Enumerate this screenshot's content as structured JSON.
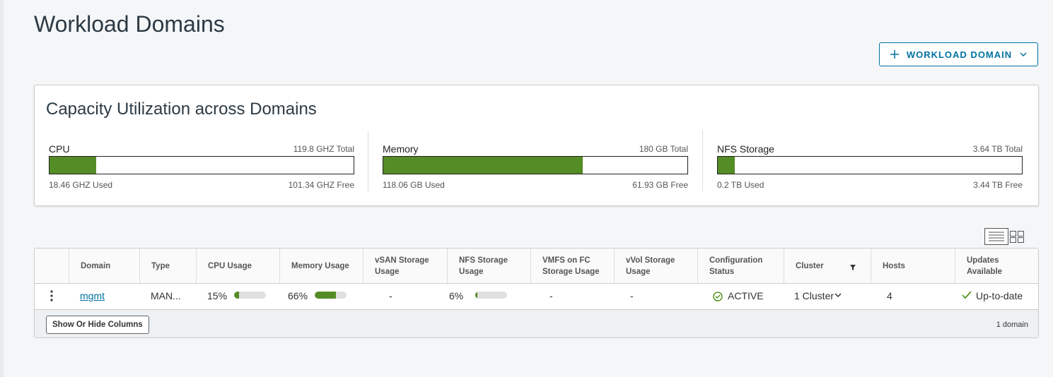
{
  "header": {
    "title": "Workload Domains",
    "add_button": "WORKLOAD DOMAIN"
  },
  "capacity": {
    "title": "Capacity Utilization across Domains",
    "items": [
      {
        "name": "CPU",
        "total": {
          "value": 119.8,
          "label": "119.8 GHZ Total"
        },
        "used": {
          "value": 18.46,
          "label": "18.46 GHZ Used"
        },
        "free": "101.34 GHZ Free"
      },
      {
        "name": "Memory",
        "total": {
          "value": 180,
          "label": "180 GB Total"
        },
        "used": {
          "value": 118.06,
          "label": "118.06 GB Used"
        },
        "free": "61.93 GB Free"
      },
      {
        "name": "NFS Storage",
        "total": {
          "value": 3.64,
          "label": "3.64 TB Total"
        },
        "used": {
          "value": 0.2,
          "label": "0.2 TB Used"
        },
        "free": "3.44 TB Free"
      }
    ]
  },
  "table": {
    "columns": [
      "Domain",
      "Type",
      "CPU Usage",
      "Memory Usage",
      "vSAN Storage Usage",
      "NFS Storage Usage",
      "VMFS on FC Storage Usage",
      "vVol Storage Usage",
      "Configuration Status",
      "Cluster",
      "Hosts",
      "Updates Available"
    ],
    "rows": [
      {
        "domain": "mgmt",
        "type": "MAN...",
        "cpu": {
          "value": 15,
          "label": "15%"
        },
        "memory": {
          "value": 66,
          "label": "66%"
        },
        "vsan": "-",
        "nfs": {
          "value": 6,
          "label": "6%"
        },
        "vmfs": "-",
        "vvol": "-",
        "status": "ACTIVE",
        "cluster": "1 Cluster",
        "hosts": 4,
        "updates": "Up-to-date"
      }
    ],
    "show_hide": "Show Or Hide Columns",
    "count": "1 domain"
  }
}
